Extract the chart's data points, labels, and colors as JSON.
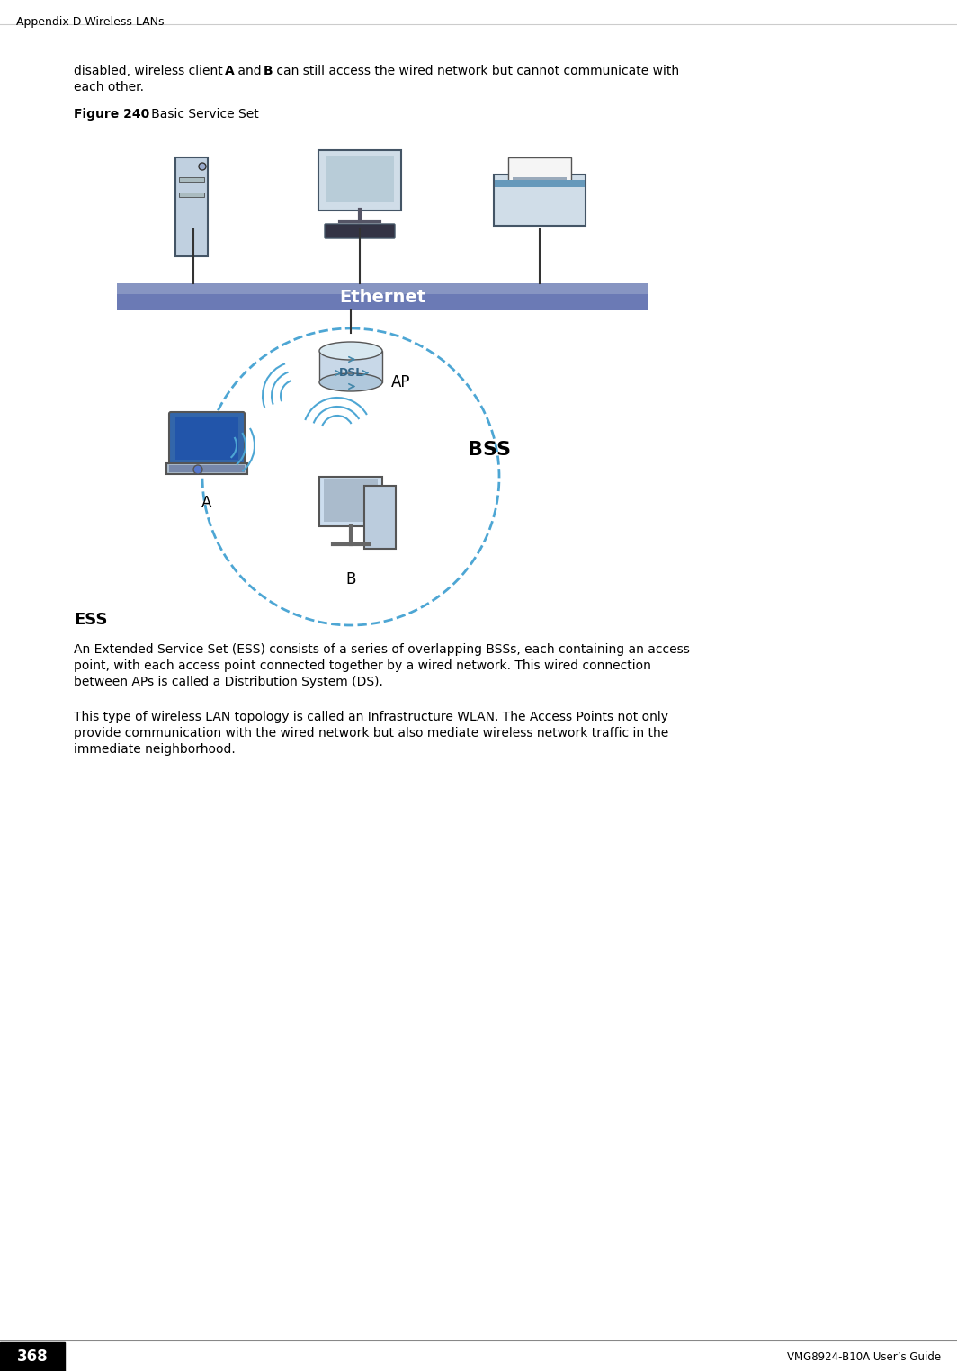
{
  "page_title": "Appendix D Wireless LANs",
  "page_number": "368",
  "guide_name": "VMG8924-B10A User’s Guide",
  "bg_color": "#ffffff",
  "header_line_color": "#000000",
  "footer_line_color": "#000000",
  "footer_box_color": "#000000",
  "body_text_1": "disabled, wireless client ",
  "body_text_1b": "A",
  "body_text_2": " and ",
  "body_text_2b": "B",
  "body_text_3": " can still access the wired network but cannot communicate with\neach other.",
  "figure_label": "Figure 240",
  "figure_caption": "   Basic Service Set",
  "ethernet_label": "Ethernet",
  "dsl_label": "DSL",
  "ap_label": "AP",
  "bss_label": "BSS",
  "node_a_label": "A",
  "node_b_label": "B",
  "section_title": "ESS",
  "para1": "An Extended Service Set (ESS) consists of a series of overlapping BSSs, each containing an access\npoint, with each access point connected together by a wired network. This wired connection\nbetween APs is called a Distribution System (DS).",
  "para2": "This type of wireless LAN topology is called an Infrastructure WLAN. The Access Points not only\nprovide communication with the wired network but also mediate wireless network traffic in the\nimmediate neighborhood.",
  "ethernet_bar_color1": "#6b7ab5",
  "ethernet_bar_color2": "#9ba8cc",
  "ethernet_text_color": "#ffffff",
  "bss_circle_color": "#4da6d4",
  "dsl_color": "#6b9fd4",
  "dashed_color": "#4da6d4"
}
